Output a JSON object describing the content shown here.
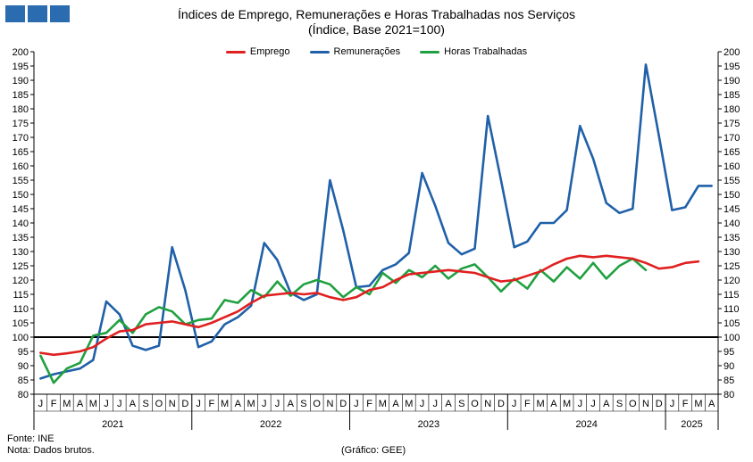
{
  "chart_data": {
    "type": "line",
    "title": "Índices de Emprego, Remunerações e Horas Trabalhadas nos Serviços",
    "subtitle": "(Índice, Base 2021=100)",
    "xlabel": "",
    "ylabel": "",
    "ylim": [
      80,
      200
    ],
    "ytick_step": 5,
    "y_ticks_both_sides": true,
    "reference_line": 100,
    "reference_color": "#000000",
    "grid": false,
    "legend_position": "top-center",
    "x_month_labels": [
      "J",
      "F",
      "M",
      "A",
      "M",
      "J",
      "J",
      "A",
      "S",
      "O",
      "N",
      "D",
      "J",
      "F",
      "M",
      "A",
      "M",
      "J",
      "J",
      "A",
      "S",
      "O",
      "N",
      "D",
      "J",
      "F",
      "M",
      "A",
      "M",
      "J",
      "J",
      "A",
      "S",
      "O",
      "N",
      "D",
      "J",
      "F",
      "M",
      "A",
      "M",
      "J",
      "J",
      "A",
      "S",
      "O",
      "N",
      "D",
      "J",
      "F",
      "M",
      "A"
    ],
    "years": [
      {
        "label": "2021",
        "start": 0,
        "months": 12
      },
      {
        "label": "2022",
        "start": 12,
        "months": 12
      },
      {
        "label": "2023",
        "start": 24,
        "months": 12
      },
      {
        "label": "2024",
        "start": 36,
        "months": 12
      },
      {
        "label": "2025",
        "start": 48,
        "months": 4
      }
    ],
    "series": [
      {
        "name": "Emprego",
        "color": "#e02020",
        "values": [
          94.5,
          93.8,
          94.3,
          95.0,
          96.5,
          99.5,
          102.0,
          102.5,
          104.5,
          105.0,
          105.5,
          104.5,
          103.5,
          105.0,
          107.0,
          109.0,
          112.0,
          114.5,
          115.0,
          115.5,
          115.0,
          115.5,
          114.0,
          113.0,
          114.0,
          116.5,
          117.5,
          120.0,
          122.0,
          122.5,
          123.0,
          123.5,
          123.0,
          122.5,
          121.0,
          119.5,
          120.0,
          121.5,
          123.0,
          125.5,
          127.5,
          128.5,
          128.0,
          128.5,
          128.0,
          127.5,
          126.0,
          124.0,
          124.5,
          126.0,
          126.5,
          null
        ]
      },
      {
        "name": "Remunerações",
        "color": "#2060a8",
        "values": [
          85.5,
          87.0,
          88.0,
          89.0,
          92.0,
          112.5,
          108.0,
          97.0,
          95.5,
          97.0,
          131.5,
          116.5,
          96.5,
          98.5,
          104.5,
          107.0,
          111.0,
          133.0,
          127.0,
          115.5,
          113.0,
          115.0,
          155.0,
          137.5,
          117.5,
          118.0,
          123.5,
          125.5,
          129.5,
          157.5,
          146.0,
          133.0,
          129.0,
          131.0,
          177.5,
          155.0,
          131.5,
          133.5,
          140.0,
          140.0,
          144.5,
          174.0,
          162.5,
          147.0,
          143.5,
          145.0,
          195.5,
          170.5,
          144.5,
          145.5,
          153.0,
          153.0
        ]
      },
      {
        "name": "Horas Trabalhadas",
        "color": "#20a040",
        "values": [
          93.5,
          84.0,
          89.0,
          91.0,
          100.5,
          101.5,
          106.0,
          101.5,
          108.0,
          110.5,
          109.0,
          104.5,
          106.0,
          106.5,
          113.0,
          112.0,
          116.5,
          114.0,
          119.5,
          114.5,
          118.5,
          120.0,
          118.5,
          114.0,
          117.5,
          115.0,
          122.5,
          119.0,
          123.5,
          121.0,
          125.0,
          120.5,
          124.0,
          125.5,
          121.0,
          116.0,
          120.5,
          117.0,
          123.5,
          119.5,
          124.5,
          120.5,
          126.0,
          120.5,
          125.0,
          127.5,
          123.5,
          null,
          null,
          null,
          null,
          null
        ]
      }
    ]
  },
  "footer": {
    "source": "Fonte: INE",
    "note": "Nota: Dados brutos.",
    "credit": "(Gráfico: GEE)"
  }
}
